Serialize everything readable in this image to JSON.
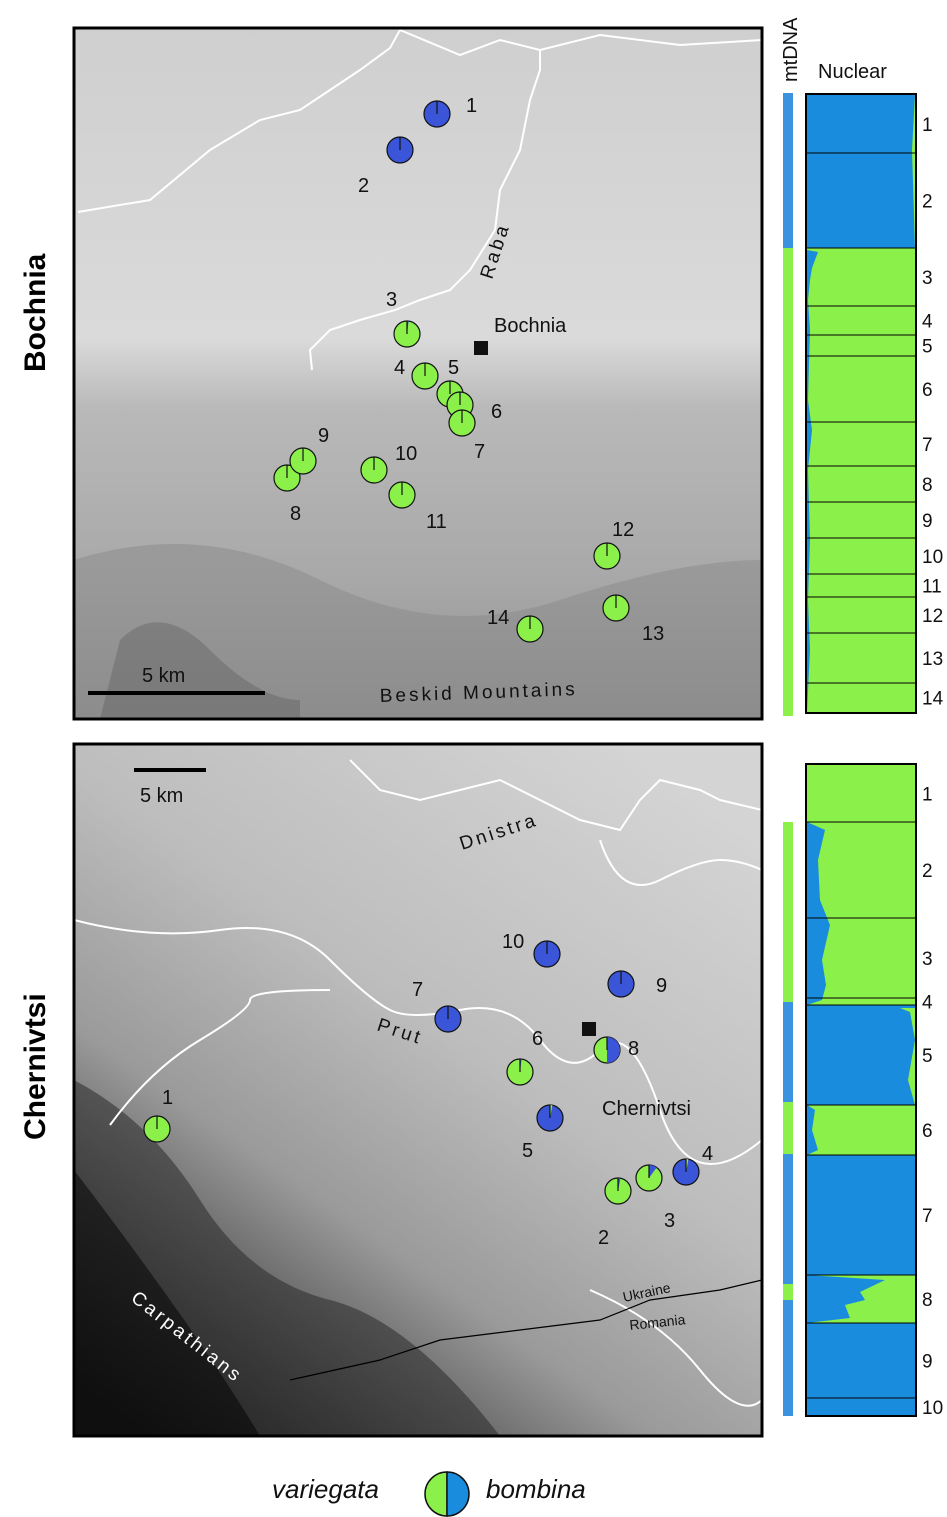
{
  "panels": {
    "top": {
      "region_label": "Bochnia",
      "town_label": "Bochnia",
      "river_label": "Raba",
      "mountain_label": "Beskid Mountains",
      "scale_label": "5 km"
    },
    "bottom": {
      "region_label": "Chernivtsi",
      "town_label": "Chernivtsi",
      "river1_label": "Dnistra",
      "river2_label": "Prut",
      "mountain_label": "Carpathians",
      "country1_label": "Ukraine",
      "country2_label": "Romania",
      "scale_label": "5 km"
    }
  },
  "bar_headers": {
    "mtdna": "mtDNA",
    "nuclear": "Nuclear"
  },
  "legend": {
    "left": "variegata",
    "right": "bombina"
  },
  "colors": {
    "variegata": "#8bf04a",
    "bombina": "#3a55d8",
    "nuclear_blue": "#1a8cde",
    "mtdna_blue": "#3b93e0"
  },
  "sites_top": [
    {
      "label": "1",
      "frac_variegata": 0.0
    },
    {
      "label": "2",
      "frac_variegata": 0.0
    },
    {
      "label": "3",
      "frac_variegata": 0.98
    },
    {
      "label": "4",
      "frac_variegata": 1.0
    },
    {
      "label": "5",
      "frac_variegata": 1.0
    },
    {
      "label": "6",
      "frac_variegata": 0.99
    },
    {
      "label": "7",
      "frac_variegata": 1.0
    },
    {
      "label": "8",
      "frac_variegata": 1.0
    },
    {
      "label": "9",
      "frac_variegata": 1.0
    },
    {
      "label": "10",
      "frac_variegata": 1.0
    },
    {
      "label": "11",
      "frac_variegata": 1.0
    },
    {
      "label": "12",
      "frac_variegata": 1.0
    },
    {
      "label": "13",
      "frac_variegata": 1.0
    },
    {
      "label": "14",
      "frac_variegata": 1.0
    }
  ],
  "sites_bottom": [
    {
      "label": "1",
      "frac_variegata": 1.0
    },
    {
      "label": "2",
      "frac_variegata": 0.97
    },
    {
      "label": "3",
      "frac_variegata": 0.9
    },
    {
      "label": "4",
      "frac_variegata": 0.03
    },
    {
      "label": "5",
      "frac_variegata": 0.03
    },
    {
      "label": "6",
      "frac_variegata": 0.98
    },
    {
      "label": "7",
      "frac_variegata": 0.0
    },
    {
      "label": "8",
      "frac_variegata": 0.5
    },
    {
      "label": "9",
      "frac_variegata": 0.0
    },
    {
      "label": "10",
      "frac_variegata": 0.0
    }
  ],
  "nuclear_top_groups": [
    "1",
    "2",
    "3",
    "4",
    "5",
    "6",
    "7",
    "8",
    "9",
    "10",
    "11",
    "12",
    "13",
    "14"
  ],
  "nuclear_bottom_groups": [
    "1",
    "2",
    "3",
    "4",
    "5",
    "6",
    "7",
    "8",
    "9",
    "10"
  ]
}
